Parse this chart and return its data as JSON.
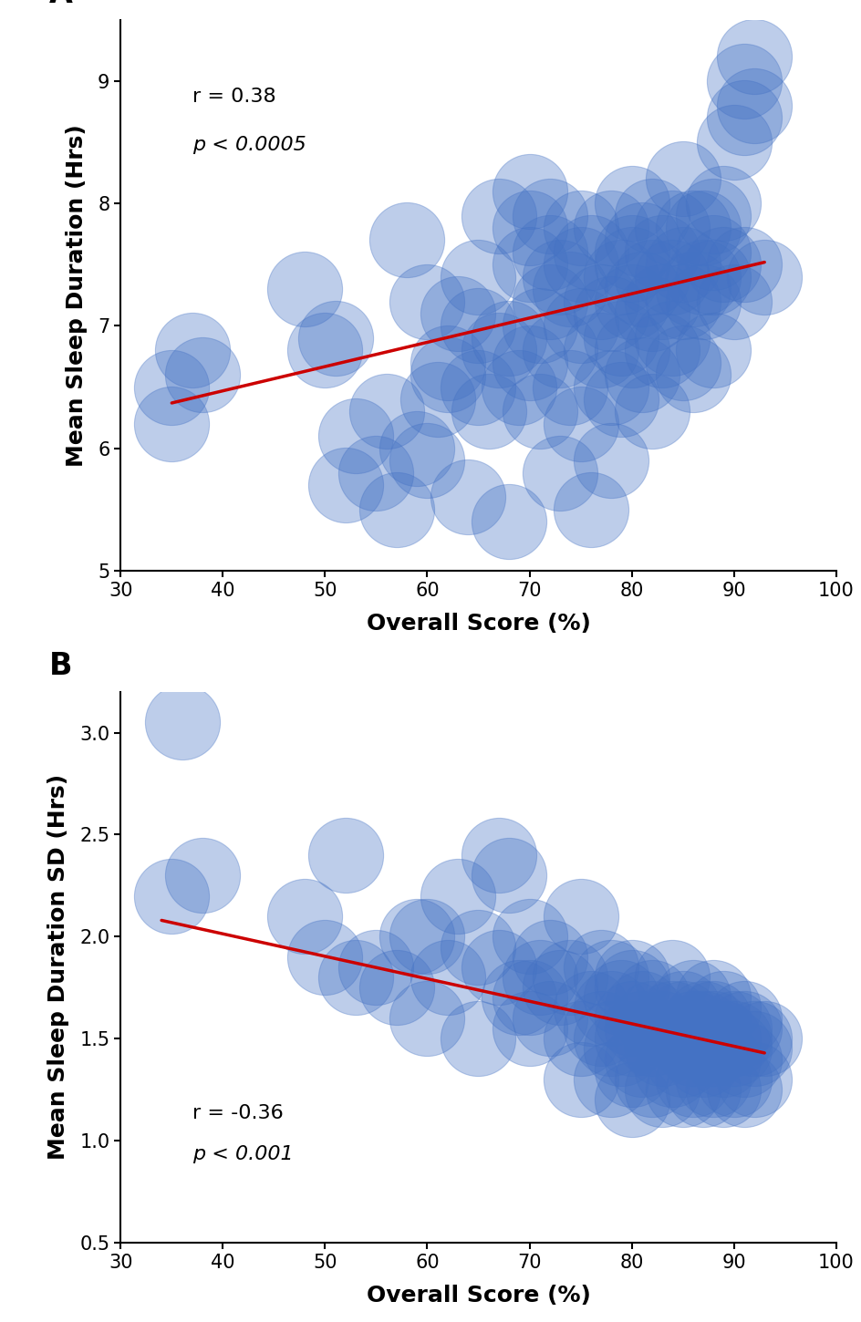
{
  "panel_A": {
    "label": "A",
    "xlabel": "Overall Score (%)",
    "ylabel": "Mean Sleep Duration (Hrs)",
    "xlim": [
      30,
      100
    ],
    "ylim": [
      5.0,
      9.5
    ],
    "xticks": [
      30,
      40,
      50,
      60,
      70,
      80,
      90,
      100
    ],
    "yticks": [
      5.0,
      6.0,
      7.0,
      8.0,
      9.0
    ],
    "ann_line1": "r = 0.38",
    "ann_line2": "p < 0.0005",
    "ann_x": 37,
    "ann_y1": 8.95,
    "ann_y2": 8.55,
    "trendline_x": [
      35,
      93
    ],
    "trendline_y": [
      6.37,
      7.52
    ],
    "scatter_x": [
      35,
      35,
      37,
      38,
      48,
      50,
      51,
      52,
      53,
      55,
      56,
      57,
      58,
      59,
      60,
      60,
      61,
      62,
      62,
      63,
      64,
      65,
      65,
      65,
      66,
      67,
      67,
      68,
      68,
      69,
      70,
      70,
      70,
      70,
      71,
      71,
      72,
      72,
      72,
      73,
      73,
      73,
      74,
      74,
      75,
      75,
      75,
      75,
      76,
      76,
      77,
      77,
      78,
      78,
      78,
      78,
      79,
      79,
      79,
      80,
      80,
      80,
      80,
      80,
      81,
      81,
      81,
      82,
      82,
      82,
      82,
      83,
      83,
      83,
      84,
      84,
      84,
      85,
      85,
      85,
      85,
      86,
      86,
      86,
      87,
      87,
      87,
      88,
      88,
      88,
      88,
      89,
      89,
      90,
      90,
      91,
      91,
      91,
      92,
      92,
      93
    ],
    "scatter_y": [
      6.5,
      6.2,
      6.8,
      6.6,
      7.3,
      6.8,
      6.9,
      5.7,
      6.1,
      5.8,
      6.3,
      5.5,
      7.7,
      6.0,
      5.9,
      7.2,
      6.4,
      6.7,
      6.6,
      7.1,
      5.6,
      6.5,
      7.0,
      7.4,
      6.3,
      6.8,
      7.9,
      6.9,
      5.4,
      6.5,
      7.5,
      7.8,
      8.1,
      6.7,
      7.0,
      6.3,
      7.2,
      7.6,
      7.9,
      7.4,
      6.8,
      5.8,
      7.3,
      6.5,
      7.0,
      7.5,
      7.8,
      6.2,
      7.6,
      5.5,
      7.2,
      6.8,
      7.8,
      6.5,
      7.1,
      5.9,
      7.4,
      6.9,
      6.4,
      7.6,
      8.0,
      7.2,
      6.8,
      7.5,
      7.7,
      7.3,
      6.6,
      7.9,
      7.1,
      7.4,
      6.3,
      7.6,
      7.2,
      6.8,
      7.8,
      6.9,
      7.4,
      7.5,
      7.2,
      8.2,
      6.7,
      7.8,
      6.6,
      7.3,
      7.4,
      7.8,
      7.2,
      7.6,
      7.9,
      7.4,
      6.8,
      8.0,
      7.5,
      8.5,
      7.2,
      9.0,
      8.7,
      7.5,
      8.8,
      9.2,
      7.4
    ],
    "circle_size": 3500,
    "circle_color": "#4472C4",
    "circle_alpha": 0.35,
    "trendline_color": "#CC0000",
    "trendline_lw": 2.5
  },
  "panel_B": {
    "label": "B",
    "xlabel": "Overall Score (%)",
    "ylabel": "Mean Sleep Duration SD (Hrs)",
    "xlim": [
      30,
      100
    ],
    "ylim": [
      0.5,
      3.2
    ],
    "xticks": [
      30,
      40,
      50,
      60,
      70,
      80,
      90,
      100
    ],
    "yticks": [
      0.5,
      1.0,
      1.5,
      2.0,
      2.5,
      3.0
    ],
    "ann_line1": "r = -0.36",
    "ann_line2": "p < 0.001",
    "ann_x": 37,
    "ann_y1": 1.18,
    "ann_y2": 0.98,
    "trendline_x": [
      34,
      93
    ],
    "trendline_y": [
      2.08,
      1.43
    ],
    "scatter_x": [
      35,
      36,
      38,
      48,
      50,
      52,
      53,
      55,
      57,
      59,
      60,
      60,
      62,
      63,
      65,
      65,
      67,
      67,
      68,
      69,
      70,
      70,
      70,
      71,
      72,
      72,
      73,
      74,
      75,
      75,
      75,
      76,
      77,
      77,
      78,
      78,
      78,
      78,
      79,
      79,
      80,
      80,
      80,
      80,
      80,
      80,
      81,
      81,
      81,
      82,
      82,
      82,
      82,
      83,
      83,
      83,
      84,
      84,
      84,
      85,
      85,
      85,
      85,
      85,
      86,
      86,
      86,
      86,
      87,
      87,
      87,
      87,
      87,
      88,
      88,
      88,
      88,
      88,
      89,
      89,
      89,
      89,
      90,
      90,
      90,
      90,
      91,
      91,
      91,
      91,
      92,
      92,
      92,
      93
    ],
    "scatter_y": [
      2.2,
      3.05,
      2.3,
      2.1,
      1.9,
      2.4,
      1.8,
      1.85,
      1.75,
      2.0,
      2.0,
      1.6,
      1.8,
      2.2,
      1.95,
      1.5,
      1.85,
      2.4,
      2.3,
      1.7,
      1.7,
      1.55,
      2.0,
      1.8,
      1.9,
      1.6,
      1.75,
      1.8,
      1.5,
      2.1,
      1.3,
      1.65,
      1.55,
      1.85,
      1.8,
      1.5,
      1.65,
      1.3,
      1.7,
      1.45,
      1.6,
      1.75,
      1.5,
      1.8,
      1.35,
      1.2,
      1.55,
      1.65,
      1.4,
      1.5,
      1.6,
      1.7,
      1.3,
      1.55,
      1.45,
      1.25,
      1.6,
      1.8,
      1.35,
      1.5,
      1.65,
      1.4,
      1.6,
      1.25,
      1.55,
      1.7,
      1.45,
      1.3,
      1.5,
      1.6,
      1.4,
      1.55,
      1.25,
      1.55,
      1.7,
      1.45,
      1.6,
      1.3,
      1.5,
      1.65,
      1.4,
      1.25,
      1.5,
      1.55,
      1.45,
      1.3,
      1.6,
      1.4,
      1.55,
      1.25,
      1.5,
      1.45,
      1.3,
      1.5
    ],
    "circle_size": 3500,
    "circle_color": "#4472C4",
    "circle_alpha": 0.35,
    "trendline_color": "#CC0000",
    "trendline_lw": 2.5
  },
  "bg_color": "#FFFFFF",
  "tick_fontsize": 15,
  "axis_label_fontsize": 18,
  "annotation_fontsize": 16,
  "panel_label_fontsize": 24
}
